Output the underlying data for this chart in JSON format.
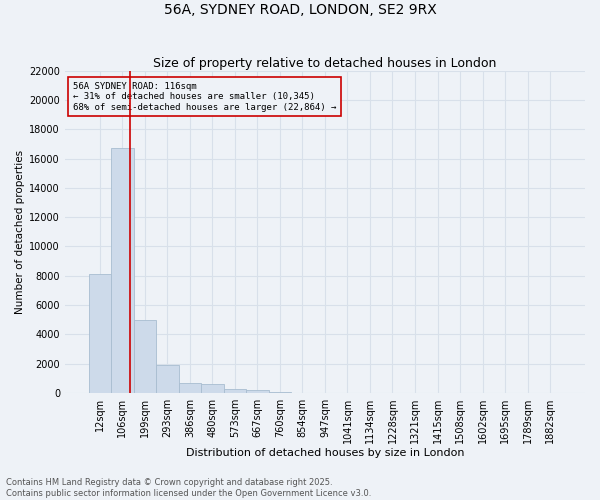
{
  "title1": "56A, SYDNEY ROAD, LONDON, SE2 9RX",
  "title2": "Size of property relative to detached houses in London",
  "xlabel": "Distribution of detached houses by size in London",
  "ylabel": "Number of detached properties",
  "categories": [
    "12sqm",
    "106sqm",
    "199sqm",
    "293sqm",
    "386sqm",
    "480sqm",
    "573sqm",
    "667sqm",
    "760sqm",
    "854sqm",
    "947sqm",
    "1041sqm",
    "1134sqm",
    "1228sqm",
    "1321sqm",
    "1415sqm",
    "1508sqm",
    "1602sqm",
    "1695sqm",
    "1789sqm",
    "1882sqm"
  ],
  "values": [
    8100,
    16700,
    5000,
    1900,
    700,
    600,
    280,
    200,
    60,
    0,
    0,
    0,
    0,
    0,
    0,
    0,
    0,
    0,
    0,
    0,
    0
  ],
  "bar_color": "#cddaea",
  "bar_edgecolor": "#a8bdd0",
  "vline_x": 1.35,
  "vline_color": "#cc0000",
  "annotation_text": "56A SYDNEY ROAD: 116sqm\n← 31% of detached houses are smaller (10,345)\n68% of semi-detached houses are larger (22,864) →",
  "annotation_box_color": "#cc0000",
  "ylim": [
    0,
    22000
  ],
  "yticks": [
    0,
    2000,
    4000,
    6000,
    8000,
    10000,
    12000,
    14000,
    16000,
    18000,
    20000,
    22000
  ],
  "background_color": "#eef2f7",
  "grid_color": "#d8e0ea",
  "footer": "Contains HM Land Registry data © Crown copyright and database right 2025.\nContains public sector information licensed under the Open Government Licence v3.0.",
  "title1_fontsize": 10,
  "title2_fontsize": 9,
  "xlabel_fontsize": 8,
  "ylabel_fontsize": 7.5,
  "tick_fontsize": 7,
  "annotation_fontsize": 6.5,
  "footer_fontsize": 6
}
